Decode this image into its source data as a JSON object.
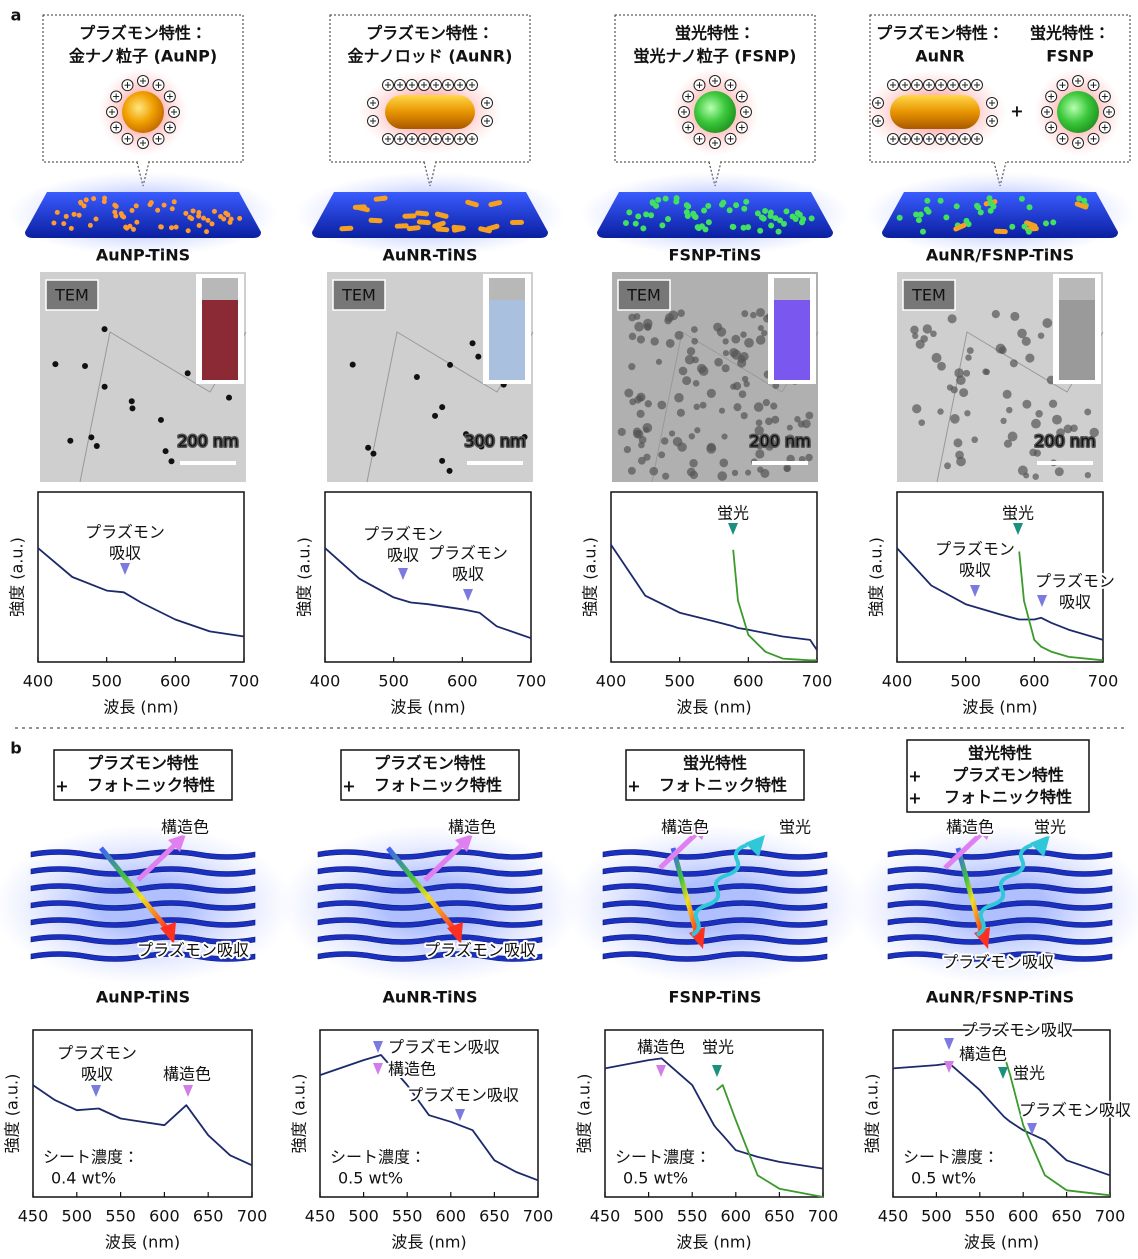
{
  "panel_a": {
    "label": "a",
    "columns": [
      {
        "callout": [
          {
            "property": "プラズモン特性：",
            "color": "#7a7ae0",
            "particle": "金ナノ粒子 (AuNP)"
          }
        ],
        "sheet": "AuNP-TiNS",
        "tem_label": "TEM",
        "scale_bar": "200 nm"
      },
      {
        "callout": [
          {
            "property": "プラズモン特性：",
            "color": "#7a7ae0",
            "particle": "金ナノロッド (AuNR)"
          }
        ],
        "sheet": "AuNR-TiNS",
        "tem_label": "TEM",
        "scale_bar": "300 nm"
      },
      {
        "callout": [
          {
            "property": "蛍光特性：",
            "color": "#1b9080",
            "particle": "蛍光ナノ粒子 (FSNP)"
          }
        ],
        "sheet": "FSNP-TiNS",
        "tem_label": "TEM",
        "scale_bar": "200 nm"
      },
      {
        "callout": [
          {
            "property": "プラズモン特性：",
            "color": "#7a7ae0",
            "particle": "AuNR"
          },
          {
            "property": "蛍光特性：",
            "color": "#1b9080",
            "particle": "FSNP"
          }
        ],
        "plus": "+",
        "sheet": "AuNR/FSNP-TiNS",
        "tem_label": "TEM",
        "scale_bar": "200 nm"
      }
    ]
  },
  "panel_b": {
    "label": "b",
    "columns": [
      {
        "properties": [
          {
            "text": "プラズモン特性",
            "color": "#7a7ae0"
          },
          {
            "plus": "+",
            "text": "フォトニック特性",
            "color": "#d27ee6"
          }
        ],
        "diagram_labels": [
          {
            "text": "構造色",
            "color": "#d27ee6"
          },
          {
            "text": "プラズモン吸収",
            "color": "#7a7ae0"
          }
        ],
        "sheet": "AuNP-TiNS"
      },
      {
        "properties": [
          {
            "text": "プラズモン特性",
            "color": "#7a7ae0"
          },
          {
            "plus": "+",
            "text": "フォトニック特性",
            "color": "#d27ee6"
          }
        ],
        "diagram_labels": [
          {
            "text": "構造色",
            "color": "#d27ee6"
          },
          {
            "text": "プラズモン吸収",
            "color": "#7a7ae0"
          }
        ],
        "sheet": "AuNR-TiNS"
      },
      {
        "properties": [
          {
            "text": "蛍光特性",
            "color": "#1b9080"
          },
          {
            "plus": "+",
            "text": "フォトニック特性",
            "color": "#d27ee6"
          }
        ],
        "diagram_labels": [
          {
            "text": "構造色",
            "color": "#d27ee6"
          },
          {
            "text": "蛍光",
            "color": "#1b9080"
          }
        ],
        "sheet": "FSNP-TiNS"
      },
      {
        "properties": [
          {
            "text": "蛍光特性",
            "color": "#1b9080"
          },
          {
            "plus": "+",
            "text": "プラズモン特性",
            "color": "#7a7ae0"
          },
          {
            "plus": "+",
            "text": "フォトニック特性",
            "color": "#d27ee6"
          }
        ],
        "diagram_labels": [
          {
            "text": "構造色",
            "color": "#d27ee6"
          },
          {
            "text": "蛍光",
            "color": "#1b9080"
          },
          {
            "text": "プラズモン吸収",
            "color": "#7a7ae0"
          }
        ],
        "sheet": "AuNR/FSNP-TiNS"
      }
    ]
  },
  "chart_data": [
    {
      "type": "line",
      "xlabel": "波長 (nm)",
      "ylabel": "強度 (a.u.)",
      "xlim": [
        400,
        700
      ],
      "xticks": [
        400,
        500,
        600,
        700
      ],
      "ylim": [
        0,
        1
      ],
      "x": [
        400,
        450,
        500,
        525,
        550,
        600,
        650,
        700
      ],
      "series": [
        {
          "color": "#1c2a6b",
          "values": [
            0.67,
            0.5,
            0.42,
            0.41,
            0.35,
            0.25,
            0.18,
            0.15
          ]
        }
      ],
      "annotations": [
        {
          "lines": [
            "プラズモン",
            "吸収"
          ],
          "color": "#7a7ae0"
        }
      ]
    },
    {
      "type": "line",
      "xlabel": "波長 (nm)",
      "ylabel": "強度 (a.u.)",
      "xlim": [
        400,
        700
      ],
      "xticks": [
        400,
        500,
        600,
        700
      ],
      "ylim": [
        0,
        1
      ],
      "x": [
        400,
        450,
        500,
        525,
        550,
        600,
        625,
        650,
        700
      ],
      "series": [
        {
          "color": "#1c2a6b",
          "values": [
            0.67,
            0.49,
            0.38,
            0.35,
            0.34,
            0.31,
            0.29,
            0.21,
            0.14
          ]
        }
      ],
      "annotations": [
        {
          "lines": [
            "プラズモン",
            "吸収"
          ],
          "color": "#7a7ae0"
        },
        {
          "lines": [
            "プラズモン",
            "吸収"
          ],
          "color": "#7a7ae0"
        }
      ]
    },
    {
      "type": "line",
      "xlabel": "波長 (nm)",
      "ylabel": "強度 (a.u.)",
      "xlim": [
        400,
        700
      ],
      "xticks": [
        400,
        500,
        600,
        700
      ],
      "ylim": [
        0,
        1
      ],
      "x": [
        400,
        450,
        500,
        550,
        578,
        585,
        600,
        625,
        650,
        690,
        700
      ],
      "series": [
        {
          "color": "#1c2a6b",
          "values": [
            0.69,
            0.39,
            0.29,
            0.24,
            0.21,
            0.2,
            0.19,
            0.17,
            0.15,
            0.13,
            0.07
          ]
        },
        {
          "color": "#3a9a2a",
          "values": [
            null,
            null,
            null,
            null,
            0.66,
            0.36,
            0.16,
            0.06,
            0.02,
            0.01,
            0.01
          ]
        }
      ],
      "annotations": [
        {
          "lines": [
            "蛍光"
          ],
          "color": "#1b9080"
        }
      ]
    },
    {
      "type": "line",
      "xlabel": "波長 (nm)",
      "ylabel": "強度 (a.u.)",
      "xlim": [
        400,
        700
      ],
      "xticks": [
        400,
        500,
        600,
        700
      ],
      "ylim": [
        0,
        1
      ],
      "x": [
        400,
        450,
        500,
        550,
        578,
        585,
        600,
        610,
        625,
        650,
        700
      ],
      "series": [
        {
          "color": "#1c2a6b",
          "values": [
            0.67,
            0.45,
            0.34,
            0.28,
            0.25,
            0.25,
            0.25,
            0.26,
            0.23,
            0.19,
            0.13
          ]
        },
        {
          "color": "#3a9a2a",
          "values": [
            null,
            null,
            null,
            null,
            0.65,
            0.36,
            0.13,
            0.09,
            0.06,
            0.03,
            0.01
          ]
        }
      ],
      "annotations": [
        {
          "lines": [
            "蛍光"
          ],
          "color": "#1b9080"
        },
        {
          "lines": [
            "プラズモン",
            "吸収"
          ],
          "color": "#7a7ae0"
        },
        {
          "lines": [
            "プラズモン",
            "吸収"
          ],
          "color": "#7a7ae0"
        }
      ]
    },
    {
      "type": "line",
      "xlabel": "波長 (nm)",
      "ylabel": "強度 (a.u.)",
      "xlim": [
        450,
        700
      ],
      "xticks": [
        450,
        500,
        550,
        600,
        650,
        700
      ],
      "ylim": [
        0,
        1
      ],
      "x": [
        450,
        475,
        500,
        525,
        550,
        600,
        625,
        650,
        675,
        700
      ],
      "series": [
        {
          "color": "#1c2a6b",
          "values": [
            0.67,
            0.58,
            0.52,
            0.53,
            0.47,
            0.43,
            0.55,
            0.37,
            0.25,
            0.19
          ]
        }
      ],
      "annotations": [
        {
          "lines": [
            "プラズモン",
            "吸収"
          ],
          "color": "#7a7ae0"
        },
        {
          "lines": [
            "構造色"
          ],
          "color": "#d27ee6"
        }
      ],
      "note": [
        "シート濃度：",
        "0.4 wt%"
      ]
    },
    {
      "type": "line",
      "xlabel": "波長 (nm)",
      "ylabel": "強度 (a.u.)",
      "xlim": [
        450,
        700
      ],
      "xticks": [
        450,
        500,
        550,
        600,
        650,
        700
      ],
      "ylim": [
        0,
        1
      ],
      "x": [
        450,
        500,
        520,
        550,
        575,
        600,
        625,
        650,
        675,
        700
      ],
      "series": [
        {
          "color": "#1c2a6b",
          "values": [
            0.73,
            0.82,
            0.85,
            0.67,
            0.49,
            0.45,
            0.4,
            0.22,
            0.15,
            0.1
          ]
        }
      ],
      "annotations": [
        {
          "lines": [
            "プラズモン吸収"
          ],
          "color": "#7a7ae0"
        },
        {
          "lines": [
            "構造色"
          ],
          "color": "#d27ee6"
        },
        {
          "lines": [
            "プラズモン吸収"
          ],
          "color": "#7a7ae0"
        }
      ],
      "note": [
        "シート濃度：",
        "0.5 wt%"
      ]
    },
    {
      "type": "line",
      "xlabel": "波長 (nm)",
      "ylabel": "強度 (a.u.)",
      "xlim": [
        450,
        700
      ],
      "xticks": [
        450,
        500,
        550,
        600,
        650,
        700
      ],
      "ylim": [
        0,
        1
      ],
      "x": [
        450,
        500,
        515,
        550,
        575,
        578,
        585,
        600,
        625,
        650,
        700
      ],
      "series": [
        {
          "color": "#1c2a6b",
          "values": [
            0.77,
            0.82,
            0.83,
            0.67,
            0.43,
            0.41,
            0.37,
            0.28,
            0.24,
            0.21,
            0.17
          ]
        },
        {
          "color": "#3a9a2a",
          "values": [
            null,
            null,
            null,
            null,
            null,
            0.64,
            0.67,
            0.46,
            0.13,
            0.05,
            0
          ]
        }
      ],
      "annotations": [
        {
          "lines": [
            "構造色"
          ],
          "color": "#d27ee6"
        },
        {
          "lines": [
            "蛍光"
          ],
          "color": "#1b9080"
        }
      ],
      "note": [
        "シート濃度：",
        "0.5 wt%"
      ]
    },
    {
      "type": "line",
      "xlabel": "波長 (nm)",
      "ylabel": "強度 (a.u.)",
      "xlim": [
        450,
        700
      ],
      "xticks": [
        450,
        500,
        550,
        600,
        650,
        700
      ],
      "ylim": [
        0,
        1
      ],
      "x": [
        450,
        500,
        515,
        550,
        578,
        585,
        600,
        625,
        650,
        700
      ],
      "series": [
        {
          "color": "#1c2a6b",
          "values": [
            0.77,
            0.79,
            0.8,
            0.64,
            0.48,
            0.45,
            0.4,
            0.34,
            0.22,
            0.13
          ]
        },
        {
          "color": "#3a9a2a",
          "values": [
            null,
            null,
            null,
            null,
            0.85,
            0.73,
            0.43,
            0.13,
            0.04,
            0.01
          ]
        }
      ],
      "annotations": [
        {
          "lines": [
            "プラズモン吸収"
          ],
          "color": "#7a7ae0"
        },
        {
          "lines": [
            "構造色"
          ],
          "color": "#d27ee6"
        },
        {
          "lines": [
            "蛍光"
          ],
          "color": "#1b9080"
        },
        {
          "lines": [
            "プラズモン吸収"
          ],
          "color": "#7a7ae0"
        }
      ],
      "note": [
        "シート濃度：",
        "0.5 wt%"
      ]
    }
  ]
}
